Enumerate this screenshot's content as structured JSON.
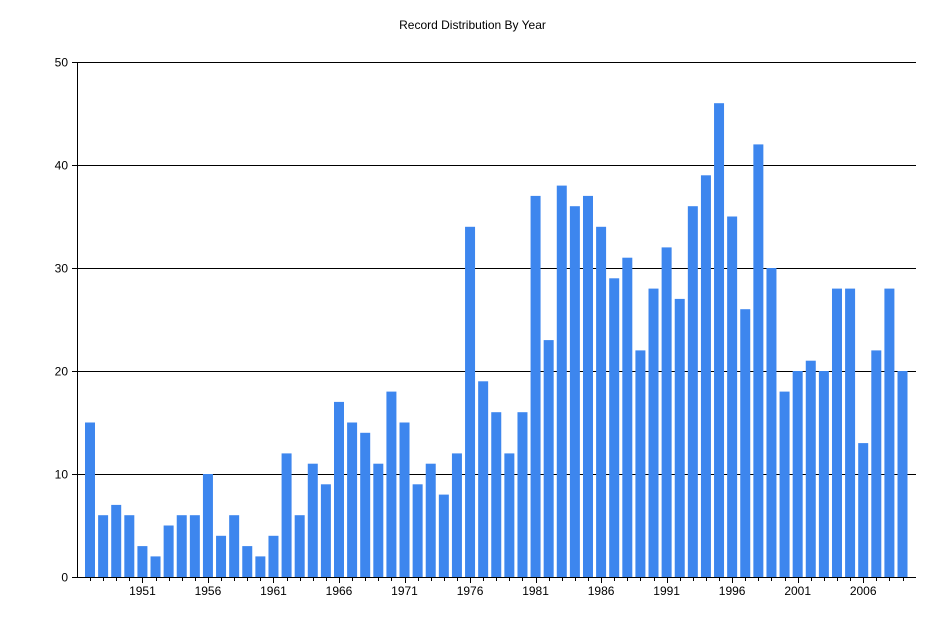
{
  "chart_data": {
    "type": "bar",
    "title": "Record Distribution By Year",
    "xlabel": "",
    "ylabel": "",
    "ylim": [
      0,
      50
    ],
    "yticks": [
      0,
      10,
      20,
      30,
      40,
      50
    ],
    "xtick_labels": [
      "1951",
      "1956",
      "1961",
      "1966",
      "1971",
      "1976",
      "1981",
      "1986",
      "1991",
      "1996",
      "2001",
      "2006"
    ],
    "grid": true,
    "bar_color": "#3D86EE",
    "categories": [
      1947,
      1948,
      1949,
      1950,
      1951,
      1952,
      1953,
      1954,
      1955,
      1956,
      1957,
      1958,
      1959,
      1960,
      1961,
      1962,
      1963,
      1964,
      1965,
      1966,
      1967,
      1968,
      1969,
      1970,
      1971,
      1972,
      1973,
      1974,
      1975,
      1976,
      1977,
      1978,
      1979,
      1980,
      1981,
      1982,
      1983,
      1984,
      1985,
      1986,
      1987,
      1988,
      1989,
      1990,
      1991,
      1992,
      1993,
      1994,
      1995,
      1996,
      1997,
      1998,
      1999,
      2000,
      2001,
      2002,
      2003,
      2004,
      2005,
      2006,
      2007,
      2008,
      2009
    ],
    "values": [
      15,
      6,
      7,
      6,
      3,
      2,
      5,
      6,
      6,
      10,
      4,
      6,
      3,
      2,
      4,
      12,
      6,
      11,
      9,
      17,
      15,
      14,
      11,
      18,
      15,
      9,
      11,
      8,
      12,
      34,
      19,
      16,
      12,
      16,
      37,
      23,
      38,
      36,
      37,
      34,
      29,
      31,
      22,
      28,
      32,
      27,
      36,
      39,
      46,
      35,
      26,
      42,
      30,
      18,
      20,
      21,
      20,
      28,
      28,
      13,
      22,
      28,
      20
    ]
  }
}
